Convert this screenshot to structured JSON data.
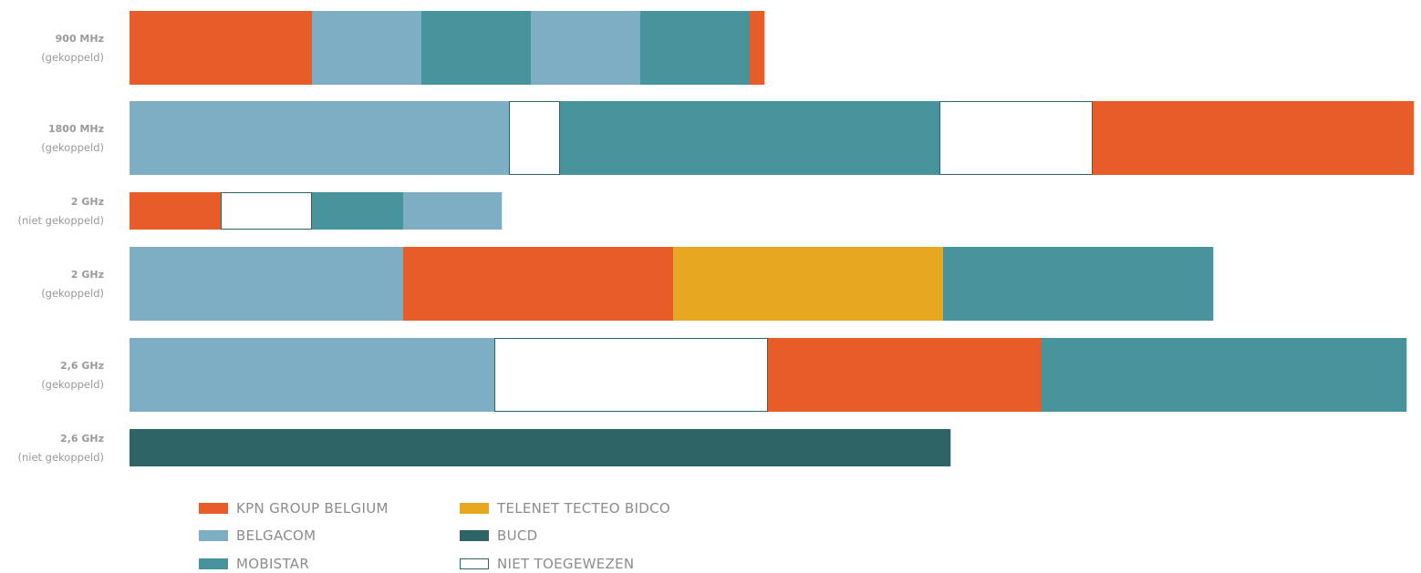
{
  "chart_data": {
    "type": "bar",
    "orientation": "horizontal",
    "stacked": true,
    "title": "",
    "xlabel": "",
    "ylabel": "",
    "grid": false,
    "legend_position": "bottom-left",
    "colors": {
      "KPN GROUP BELGIUM": "#e85d27",
      "BELGACOM": "#7eaec4",
      "MOBISTAR": "#46939b",
      "TELENET TECTEO BIDCO": "#e7a720",
      "BUCD": "#2d6466",
      "NIET TOEGEWEZEN": "#ffffff"
    },
    "legend": [
      {
        "label": "KPN GROUP BELGIUM",
        "owner": "KPN GROUP BELGIUM"
      },
      {
        "label": "BELGACOM",
        "owner": "BELGACOM"
      },
      {
        "label": "MOBISTAR",
        "owner": "MOBISTAR"
      },
      {
        "label": "TELENET TECTEO BIDCO",
        "owner": "TELENET TECTEO BIDCO"
      },
      {
        "label": "BUCD",
        "owner": "BUCD"
      },
      {
        "label": "NIET TOEGEWEZEN",
        "owner": "NIET TOEGEWEZEN"
      }
    ],
    "rows": [
      {
        "band": "900 MHz",
        "mode": "(gekoppeld)",
        "segments": [
          {
            "owner": "KPN GROUP BELGIUM",
            "value": 10
          },
          {
            "owner": "BELGACOM",
            "value": 6
          },
          {
            "owner": "MOBISTAR",
            "value": 6
          },
          {
            "owner": "BELGACOM",
            "value": 6
          },
          {
            "owner": "MOBISTAR",
            "value": 6
          },
          {
            "owner": "KPN GROUP BELGIUM",
            "value": 0.8
          }
        ]
      },
      {
        "band": "1800 MHz",
        "mode": "(gekoppeld)",
        "segments": [
          {
            "owner": "BELGACOM",
            "value": 20.8
          },
          {
            "owner": "NIET TOEGEWEZEN",
            "value": 2.8
          },
          {
            "owner": "MOBISTAR",
            "value": 20.8
          },
          {
            "owner": "NIET TOEGEWEZEN",
            "value": 8.4
          },
          {
            "owner": "KPN GROUP BELGIUM",
            "value": 17.6
          }
        ]
      },
      {
        "band": "2 GHz",
        "mode": "(niet gekoppeld)",
        "segments": [
          {
            "owner": "KPN GROUP BELGIUM",
            "value": 5
          },
          {
            "owner": "NIET TOEGEWEZEN",
            "value": 5
          },
          {
            "owner": "MOBISTAR",
            "value": 5
          },
          {
            "owner": "BELGACOM",
            "value": 5.4
          }
        ]
      },
      {
        "band": "2 GHz",
        "mode": "(gekoppeld)",
        "segments": [
          {
            "owner": "BELGACOM",
            "value": 15
          },
          {
            "owner": "KPN GROUP BELGIUM",
            "value": 14.8
          },
          {
            "owner": "TELENET TECTEO BIDCO",
            "value": 14.8
          },
          {
            "owner": "MOBISTAR",
            "value": 14.8
          }
        ]
      },
      {
        "band": "2,6 GHz",
        "mode": "(gekoppeld)",
        "segments": [
          {
            "owner": "BELGACOM",
            "value": 20
          },
          {
            "owner": "NIET TOEGEWEZEN",
            "value": 15
          },
          {
            "owner": "KPN GROUP BELGIUM",
            "value": 15
          },
          {
            "owner": "MOBISTAR",
            "value": 20
          }
        ]
      },
      {
        "band": "2,6 GHz",
        "mode": "(niet gekoppeld)",
        "segments": [
          {
            "owner": "BUCD",
            "value": 45
          }
        ]
      }
    ]
  }
}
